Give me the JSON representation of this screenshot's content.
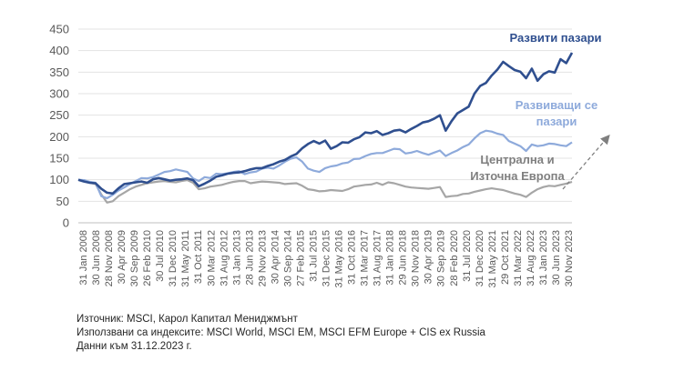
{
  "chart_data": {
    "type": "line",
    "title": "",
    "xlabel": "",
    "ylabel": "",
    "ylim": [
      0,
      450
    ],
    "yticks": [
      0,
      50,
      100,
      150,
      200,
      250,
      300,
      350,
      400,
      450
    ],
    "x_tick_labels": [
      "31 Jan 2008",
      "30 Jun 2008",
      "28 Nov 2008",
      "30 Apr 2009",
      "30 Sep 2009",
      "26 Feb 2010",
      "30 Jul 2010",
      "31 Dec 2010",
      "31 May 2011",
      "31 Oct 2011",
      "30 Mar 2012",
      "31 Aug 2012",
      "31 Jan 2013",
      "28 Jun 2013",
      "29 Nov 2013",
      "30 Apr 2014",
      "30 Sep 2014",
      "27 Feb 2015",
      "31 Jul 2015",
      "31 Dec 2015",
      "31 May 2016",
      "31 Oct 2016",
      "31 Mar 2017",
      "31 Aug 2017",
      "31 Jan 2018",
      "29 Jun 2018",
      "30 Nov 2018",
      "30 Apr 2019",
      "30 Sep 2019",
      "28 Feb 2020",
      "31 Jul 2020",
      "31 Dec 2020",
      "31 May 2021",
      "29 Oct 2021",
      "31 Mar 2022",
      "31 Aug 2022",
      "31 Jan 2023",
      "30 Jun 2023",
      "30 Nov 2023"
    ],
    "series": [
      {
        "name": "Развити пазари",
        "color": "#2f4f8f",
        "values": [
          100,
          96,
          93,
          92,
          79,
          70,
          68,
          80,
          90,
          92,
          94,
          96,
          93,
          101,
          104,
          101,
          98,
          100,
          101,
          103,
          99,
          85,
          91,
          98,
          107,
          110,
          114,
          116,
          117,
          120,
          124,
          127,
          127,
          132,
          136,
          142,
          146,
          154,
          160,
          173,
          183,
          190,
          184,
          191,
          172,
          178,
          187,
          186,
          194,
          199,
          210,
          208,
          213,
          204,
          208,
          214,
          216,
          210,
          218,
          225,
          233,
          236,
          242,
          250,
          214,
          236,
          254,
          262,
          270,
          300,
          318,
          325,
          342,
          356,
          374,
          364,
          355,
          351,
          336,
          358,
          330,
          345,
          352,
          349,
          380,
          371,
          395
        ]
      },
      {
        "name": "Развиващи се пазари",
        "color": "#8eaadb",
        "values": [
          100,
          99,
          95,
          93,
          62,
          57,
          65,
          75,
          82,
          90,
          97,
          104,
          103,
          106,
          112,
          118,
          120,
          124,
          121,
          118,
          103,
          97,
          106,
          104,
          114,
          113,
          115,
          118,
          120,
          113,
          117,
          119,
          126,
          128,
          126,
          133,
          142,
          149,
          152,
          142,
          126,
          121,
          118,
          127,
          131,
          133,
          138,
          140,
          148,
          149,
          155,
          160,
          162,
          162,
          167,
          172,
          171,
          161,
          163,
          167,
          162,
          158,
          163,
          168,
          155,
          162,
          168,
          176,
          182,
          196,
          208,
          214,
          212,
          207,
          204,
          190,
          184,
          178,
          167,
          182,
          178,
          180,
          184,
          183,
          180,
          178,
          187
        ]
      },
      {
        "name": "Централна и Източна Европа",
        "color": "#a6a6a6",
        "values": [
          100,
          98,
          93,
          90,
          66,
          47,
          50,
          62,
          70,
          78,
          84,
          88,
          92,
          94,
          96,
          97,
          95,
          94,
          97,
          99,
          93,
          78,
          80,
          84,
          86,
          88,
          92,
          95,
          97,
          97,
          92,
          94,
          96,
          95,
          94,
          93,
          90,
          91,
          92,
          86,
          78,
          76,
          73,
          74,
          76,
          75,
          74,
          78,
          84,
          86,
          88,
          89,
          93,
          88,
          94,
          92,
          88,
          84,
          82,
          81,
          80,
          79,
          81,
          83,
          60,
          62,
          63,
          67,
          68,
          72,
          75,
          78,
          80,
          78,
          76,
          72,
          68,
          65,
          60,
          70,
          78,
          83,
          86,
          85,
          88,
          91,
          95
        ]
      }
    ],
    "annotations": [
      {
        "text_lines": [
          "Развити пазари"
        ],
        "color": "#2f4f8f"
      },
      {
        "text_lines": [
          "Развиващи се",
          "пазари"
        ],
        "color": "#8eaadb"
      },
      {
        "text_lines": [
          "Централна и",
          "Източна Европа"
        ],
        "color": "#7f7f7f"
      }
    ]
  },
  "footnote": {
    "line1": "Източник: MSCI, Карол Капитал Мениджмънт",
    "line2": "Използвани са индексите: MSCI World, MSCI EM, MSCI EFM Europe + CIS ex Russia",
    "line3": "Данни към 31.12.2023 г."
  }
}
